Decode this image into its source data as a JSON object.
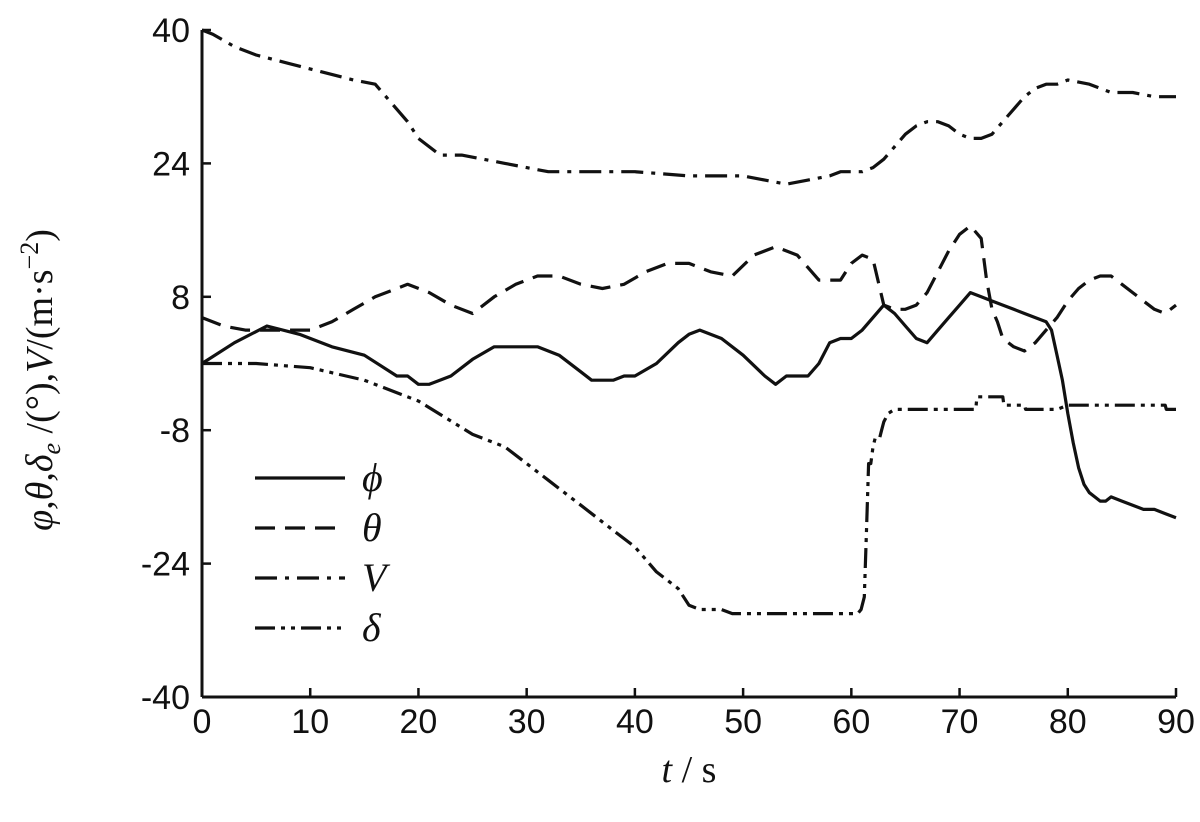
{
  "chart_data": {
    "type": "line",
    "title": "",
    "xlabel": "t / s",
    "ylabel": "φ,θ,δe /(°),V/(m·s−2)",
    "xlim": [
      0,
      90
    ],
    "ylim": [
      -40,
      40
    ],
    "x_ticks": [
      "0",
      "10",
      "20",
      "30",
      "40",
      "50",
      "60",
      "70",
      "80",
      "90"
    ],
    "y_ticks": [
      "-40",
      "-24",
      "-8",
      "8",
      "24",
      "40"
    ],
    "grid": false,
    "legend_position": "bottom-left",
    "series": [
      {
        "name": "ϕ",
        "dash": "",
        "x": [
          0,
          3,
          6,
          9,
          12,
          15,
          18,
          19,
          20,
          21,
          23,
          25,
          27,
          29,
          31,
          33,
          35,
          36,
          37,
          38,
          39,
          40,
          42,
          44,
          45,
          46,
          48,
          50,
          52,
          53,
          54,
          55,
          56,
          57,
          58,
          59,
          60,
          61,
          62,
          63,
          64,
          65,
          66,
          67,
          68,
          69,
          70,
          71,
          72,
          73,
          74,
          75,
          76,
          77,
          78,
          78.5,
          79,
          79.5,
          80,
          80.5,
          81,
          81.5,
          82,
          82.5,
          83,
          83.5,
          84,
          85,
          86,
          87,
          88,
          89,
          90
        ],
        "y": [
          0,
          2.5,
          4.5,
          3.5,
          2,
          1,
          -1.5,
          -1.5,
          -2.5,
          -2.5,
          -1.5,
          0.5,
          2,
          2,
          2,
          1,
          -1,
          -2,
          -2,
          -2,
          -1.5,
          -1.5,
          0,
          2.5,
          3.5,
          4,
          3,
          1,
          -1.5,
          -2.5,
          -1.5,
          -1.5,
          -1.5,
          0,
          2.5,
          3,
          3,
          4,
          5.5,
          7,
          6,
          4.5,
          3,
          2.5,
          4,
          5.5,
          7,
          8.5,
          8,
          7.5,
          7,
          6.5,
          6,
          5.5,
          5,
          4,
          1,
          -2,
          -6,
          -9.5,
          -12.5,
          -14.5,
          -15.5,
          -16,
          -16.5,
          -16.5,
          -16,
          -16.5,
          -17,
          -17.5,
          -17.5,
          -18,
          -18.5
        ]
      },
      {
        "name": "θ",
        "dash": "20 10",
        "x": [
          0,
          2,
          4,
          6,
          8,
          10,
          12,
          14,
          16,
          18,
          19,
          21,
          23,
          25,
          27,
          29,
          31,
          33,
          35,
          37,
          39,
          41,
          43,
          45,
          47,
          49,
          51,
          53,
          55,
          57,
          59,
          60,
          61,
          62,
          63,
          64,
          65,
          66,
          67,
          68,
          69,
          70,
          71,
          72,
          72.5,
          73,
          73.5,
          74,
          75,
          76,
          77,
          78,
          79,
          80,
          81,
          82,
          83,
          84,
          85,
          86,
          87,
          88,
          89,
          90
        ],
        "y": [
          5.5,
          4.5,
          4,
          4,
          4,
          4,
          5,
          6.5,
          8,
          9,
          9.5,
          8.5,
          7,
          6,
          8,
          9.5,
          10.5,
          10.5,
          9.5,
          9,
          9.5,
          11,
          12,
          12,
          11,
          10.5,
          13,
          14,
          13,
          10,
          10,
          12,
          13,
          12.5,
          7,
          6.5,
          6.5,
          7,
          8.5,
          11,
          13.5,
          15.5,
          16.5,
          15,
          10,
          6.5,
          5,
          3,
          2,
          1.5,
          2.5,
          4,
          5.5,
          7.5,
          9,
          10,
          10.5,
          10.5,
          9.5,
          8.5,
          7.5,
          6.5,
          6,
          7
        ]
      },
      {
        "name": "V",
        "dash": "22 8 4 8",
        "x": [
          0,
          1,
          3,
          5,
          8,
          11,
          14,
          16,
          17,
          18,
          19,
          20,
          22,
          24,
          26,
          28,
          30,
          32,
          35,
          40,
          45,
          50,
          52,
          54,
          56,
          58,
          59,
          60,
          61,
          62,
          63,
          64,
          65,
          66,
          67,
          68,
          69,
          70,
          71,
          72,
          73,
          74,
          75,
          76,
          77,
          78,
          79,
          80,
          82,
          84,
          86,
          88,
          90
        ],
        "y": [
          40,
          39.5,
          38,
          37,
          36,
          35,
          34,
          33.5,
          32,
          30.5,
          29,
          27,
          25,
          25,
          24.5,
          24,
          23.5,
          23,
          23,
          23,
          22.5,
          22.5,
          22,
          21.5,
          22,
          22.5,
          23,
          23,
          23,
          23.5,
          24.5,
          26,
          27.5,
          28.5,
          29,
          29,
          28.5,
          27.5,
          27,
          27,
          27.5,
          29,
          30.5,
          32,
          33,
          33.5,
          33.5,
          34,
          33.5,
          32.5,
          32.5,
          32,
          32
        ]
      },
      {
        "name": "δ",
        "dash": "20 6 4 6 4 6",
        "x": [
          0,
          5,
          10,
          15,
          20,
          25,
          28,
          30,
          32,
          35,
          38,
          40,
          42,
          44,
          45,
          46,
          47,
          48,
          49,
          50,
          55,
          58,
          59,
          59.5,
          60,
          60.3,
          60.6,
          60.9,
          61.2,
          61.4,
          61.6,
          61.8,
          62,
          62.2,
          62.4,
          62.6,
          62.8,
          63,
          63.4,
          64,
          66,
          68,
          70,
          71,
          71.5,
          71.6,
          72,
          72.5,
          73,
          74,
          74.1,
          75,
          76,
          76.1,
          77,
          78,
          79,
          80,
          82,
          84,
          86,
          88,
          89,
          89.1,
          90
        ],
        "y": [
          0,
          0,
          -0.5,
          -2,
          -4.5,
          -8.5,
          -10,
          -12,
          -14,
          -17,
          -20,
          -22,
          -25,
          -27,
          -29,
          -29.5,
          -29.5,
          -29.5,
          -30,
          -30,
          -30,
          -30,
          -30,
          -30,
          -30,
          -30,
          -30,
          -29.5,
          -28,
          -20,
          -12,
          -12,
          -10,
          -9,
          -9,
          -9,
          -8,
          -7,
          -6,
          -5.5,
          -5.5,
          -5.5,
          -5.5,
          -5.5,
          -5.5,
          -4,
          -4,
          -4,
          -4,
          -4,
          -5,
          -5,
          -5,
          -5.5,
          -5.5,
          -5.5,
          -5.5,
          -5,
          -5,
          -5,
          -5,
          -5,
          -5,
          -5.5,
          -5.5
        ]
      }
    ]
  }
}
